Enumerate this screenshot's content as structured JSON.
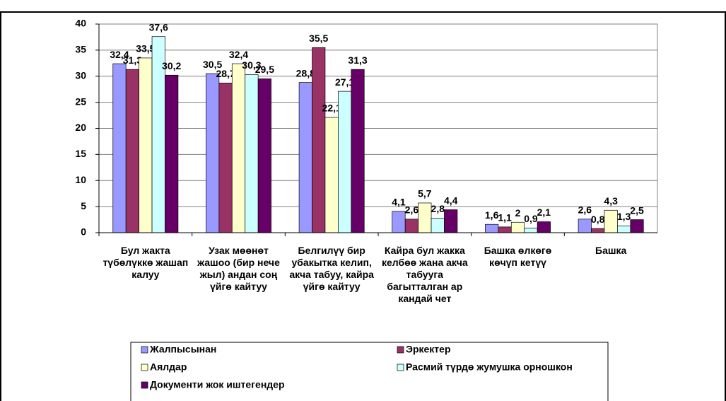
{
  "chart_data": {
    "type": "bar",
    "categories": [
      "Бул жакта түбөлүккө жашап калуу",
      "Узак мөөнөт жашоо (бир нече жыл) андан соң үйгө кайтуу",
      "Белгилүү бир убакытка келип, акча табуу, кайра үйгө кайтуу",
      "Кайра бул жакка келбөө жана акча табууга багытталган ар кандай чет",
      "Башка өлкөгө көчүп кетүү",
      "Башка"
    ],
    "series": [
      {
        "name": "Жалпысынан",
        "color": "#9999ff",
        "values": [
          32.4,
          30.5,
          28.8,
          4.1,
          1.6,
          2.6
        ],
        "value_labels": [
          "32,4",
          "30,5",
          "28,8",
          "4,1",
          "1,6",
          "2,6"
        ]
      },
      {
        "name": "Эркектер",
        "color": "#993366",
        "values": [
          31.3,
          28.7,
          35.5,
          2.6,
          1.1,
          0.8
        ],
        "value_labels": [
          "31,3",
          "28,7",
          "35,5",
          "2,6",
          "1,1",
          "0,8"
        ]
      },
      {
        "name": "Аялдар",
        "color": "#ffffcc",
        "values": [
          33.5,
          32.4,
          22.1,
          5.7,
          2,
          4.3
        ],
        "value_labels": [
          "33,5",
          "32,4",
          "22,1",
          "5,7",
          "2",
          "4,3"
        ]
      },
      {
        "name": "Расмий түрдө жумушка орношкон",
        "color": "#ccffff",
        "values": [
          37.6,
          30.3,
          27.1,
          2.8,
          0.9,
          1.3
        ],
        "value_labels": [
          "37,6",
          "30,3",
          "27,1",
          "2,8",
          "0,9",
          "1,3"
        ]
      },
      {
        "name": "Документи жок иштегендер",
        "color": "#660066",
        "values": [
          30.2,
          29.5,
          31.3,
          4.4,
          2.1,
          2.5
        ],
        "value_labels": [
          "30,2",
          "29,5",
          "31,3",
          "4,4",
          "2,1",
          "2,5"
        ]
      }
    ],
    "ylim": [
      0,
      40
    ],
    "yticks": [
      0,
      5,
      10,
      15,
      20,
      25,
      30,
      35,
      40
    ],
    "grid": true
  }
}
